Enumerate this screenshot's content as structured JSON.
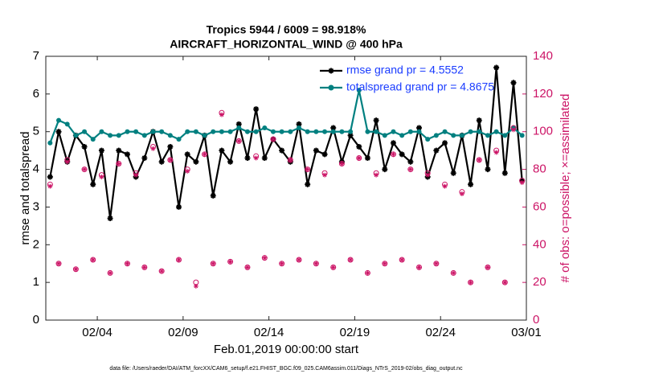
{
  "chart_data": {
    "type": "line",
    "title": "Tropics 5944 / 6009 = 98.918%",
    "subtitle": "AIRCRAFT_HORIZONTAL_WIND @ 400 hPa",
    "xlabel": "Feb.01,2019 00:00:00 start",
    "ylabel": "rmse and totalspread",
    "y2label": "# of obs: o=possible; ×=assimilated",
    "footnote": "data file: /Users/raeder/DAI/ATM_forcXX/CAM6_setup/f.e21.FHIST_BGC.f09_025.CAM6assim.011/Diags_NTrS_2019-02/obs_diag_output.nc",
    "xlim": [
      0,
      28
    ],
    "xticks": [
      {
        "value": 3,
        "label": "02/04"
      },
      {
        "value": 8,
        "label": "02/09"
      },
      {
        "value": 13,
        "label": "02/14"
      },
      {
        "value": 18,
        "label": "02/19"
      },
      {
        "value": 23,
        "label": "02/24"
      },
      {
        "value": 28,
        "label": "03/01"
      }
    ],
    "ylim": [
      0,
      7
    ],
    "yticks": [
      0,
      1,
      2,
      3,
      4,
      5,
      6,
      7
    ],
    "y2lim": [
      0,
      140
    ],
    "y2ticks": [
      0,
      20,
      40,
      60,
      80,
      100,
      120,
      140
    ],
    "x": [
      0.25,
      0.75,
      1.25,
      1.75,
      2.25,
      2.75,
      3.25,
      3.75,
      4.25,
      4.75,
      5.25,
      5.75,
      6.25,
      6.75,
      7.25,
      7.75,
      8.25,
      8.75,
      9.25,
      9.75,
      10.25,
      10.75,
      11.25,
      11.75,
      12.25,
      12.75,
      13.25,
      13.75,
      14.25,
      14.75,
      15.25,
      15.75,
      16.25,
      16.75,
      17.25,
      17.75,
      18.25,
      18.75,
      19.25,
      19.75,
      20.25,
      20.75,
      21.25,
      21.75,
      22.25,
      22.75,
      23.25,
      23.75,
      24.25,
      24.75,
      25.25,
      25.75,
      26.25,
      26.75,
      27.25,
      27.75
    ],
    "series": [
      {
        "name": "rmse grand pr = 4.5552",
        "color": "#000000",
        "marker": "star",
        "line": true,
        "values": [
          3.8,
          5.0,
          4.2,
          4.9,
          4.6,
          3.6,
          4.5,
          2.7,
          4.5,
          4.4,
          3.8,
          4.3,
          5.0,
          4.2,
          4.6,
          3.0,
          4.4,
          4.2,
          4.9,
          3.3,
          4.5,
          4.2,
          5.2,
          4.3,
          5.6,
          4.3,
          4.8,
          4.5,
          4.2,
          5.2,
          3.6,
          4.5,
          4.4,
          5.1,
          4.2,
          4.9,
          4.6,
          4.3,
          5.3,
          4.0,
          4.7,
          4.4,
          4.2,
          5.1,
          3.8,
          4.5,
          4.7,
          3.9,
          4.9,
          3.6,
          5.3,
          4.0,
          6.7,
          3.9,
          6.3,
          3.7
        ]
      },
      {
        "name": "totalspread grand pr = 4.8675",
        "color": "#008080",
        "marker": "dot",
        "line": true,
        "values": [
          4.7,
          5.3,
          5.2,
          4.9,
          5.0,
          4.8,
          5.0,
          4.9,
          4.9,
          5.0,
          5.0,
          4.9,
          5.0,
          5.0,
          4.9,
          4.8,
          5.0,
          5.0,
          4.9,
          5.0,
          5.0,
          5.0,
          5.1,
          5.0,
          5.0,
          5.1,
          5.0,
          5.0,
          5.0,
          5.1,
          5.0,
          5.0,
          5.0,
          5.0,
          5.0,
          5.0,
          6.1,
          5.0,
          5.0,
          4.9,
          5.0,
          4.9,
          5.0,
          5.0,
          4.8,
          4.9,
          5.0,
          4.9,
          4.9,
          5.0,
          5.0,
          4.9,
          5.0,
          4.9,
          5.1,
          4.9
        ]
      },
      {
        "name": "possible",
        "color": "#cc1466",
        "marker": "circle",
        "line": false,
        "axis": "y2",
        "values": [
          72,
          30,
          85,
          27,
          80,
          32,
          77,
          25,
          83,
          30,
          78,
          28,
          92,
          26,
          85,
          32,
          80,
          20,
          88,
          30,
          110,
          31,
          95,
          28,
          87,
          33,
          96,
          30,
          85,
          32,
          80,
          30,
          78,
          28,
          83,
          32,
          86,
          25,
          78,
          30,
          88,
          32,
          80,
          28,
          78,
          30,
          72,
          25,
          68,
          20,
          85,
          28,
          90,
          20,
          102,
          74
        ]
      },
      {
        "name": "assimilated",
        "color": "#cc1466",
        "marker": "star",
        "line": false,
        "axis": "y2",
        "values": [
          71,
          30,
          84,
          27,
          80,
          32,
          76,
          25,
          83,
          30,
          77,
          28,
          91,
          26,
          85,
          32,
          79,
          18,
          88,
          30,
          109,
          31,
          95,
          28,
          86,
          33,
          96,
          30,
          85,
          32,
          80,
          30,
          77,
          28,
          83,
          32,
          86,
          25,
          77,
          30,
          88,
          32,
          80,
          28,
          77,
          30,
          71,
          25,
          67,
          20,
          85,
          28,
          89,
          20,
          101,
          73
        ]
      }
    ]
  }
}
